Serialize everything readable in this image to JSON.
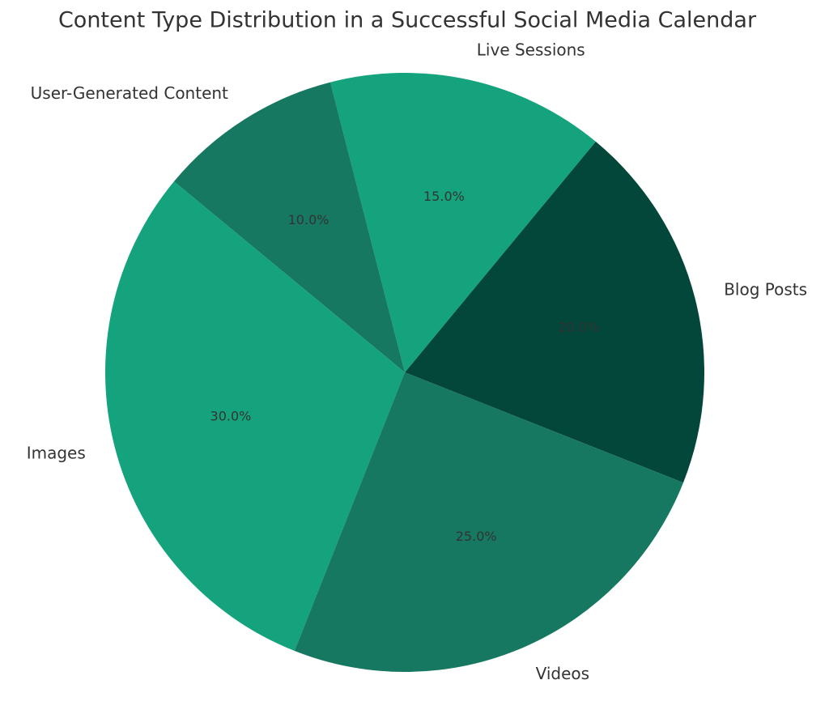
{
  "chart_data": {
    "type": "pie",
    "title": "Content Type Distribution in a Successful Social Media Calendar",
    "categories": [
      "Blog Posts",
      "Live Sessions",
      "User-Generated Content",
      "Images",
      "Videos"
    ],
    "values": [
      20,
      15,
      10,
      30,
      25
    ],
    "value_labels": [
      "20.0%",
      "15.0%",
      "10.0%",
      "30.0%",
      "25.0%"
    ],
    "colors": [
      "#03473a",
      "#14a37c",
      "#167860",
      "#14a37c",
      "#167860"
    ]
  }
}
